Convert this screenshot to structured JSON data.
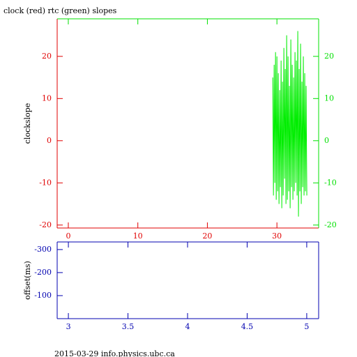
{
  "chart_data": [
    {
      "type": "line",
      "title": "clock (red) rtc (green) slopes",
      "ylabel": "clockslope",
      "xlim": [
        -1.6,
        36
      ],
      "xticks": [
        0,
        10,
        20,
        30
      ],
      "ylim": [
        -20.7,
        28.9
      ],
      "yticks": [
        -20,
        -10,
        0,
        10,
        20
      ],
      "y2lim": [
        -20.7,
        28.9
      ],
      "y2ticks": [
        -20,
        -10,
        0,
        10,
        20
      ],
      "axis_color": "#e00000",
      "y2_color": "#00e000",
      "series": [
        {
          "name": "rtc",
          "color": "#00ee00",
          "axis": "y2",
          "x": [
            29.4,
            29.5,
            29.6,
            29.7,
            29.8,
            29.9,
            30.0,
            30.1,
            30.2,
            30.3,
            30.4,
            30.5,
            30.6,
            30.7,
            30.8,
            30.9,
            31.0,
            31.1,
            31.2,
            31.3,
            31.4,
            31.5,
            31.6,
            31.7,
            31.8,
            31.9,
            32.0,
            32.1,
            32.2,
            32.3,
            32.4,
            32.5,
            32.6,
            32.7,
            32.8,
            32.9,
            33.0,
            33.1,
            33.2,
            33.3,
            33.4,
            33.5,
            33.6,
            33.7,
            33.8,
            33.9,
            34.0,
            34.1,
            34.2,
            34.3
          ],
          "values": [
            15,
            -13,
            18,
            -10,
            21,
            -14,
            20,
            -12,
            16,
            -15,
            12,
            -11,
            19,
            -16,
            14,
            -13,
            22,
            -9,
            17,
            -15,
            25,
            -14,
            20,
            -12,
            13,
            -16,
            24,
            -11,
            18,
            -14,
            15,
            -12,
            21,
            -10,
            19,
            -13,
            26,
            -18,
            17,
            -12,
            23,
            -15,
            14,
            -11,
            20,
            -13,
            16,
            -12,
            13,
            -13
          ]
        }
      ]
    },
    {
      "type": "line",
      "ylabel": "offset(ms)",
      "xlim": [
        2.906,
        5.1
      ],
      "xticks": [
        3,
        3.5,
        4,
        4.5,
        5
      ],
      "ylim": [
        0,
        -333
      ],
      "yticks": [
        -300,
        -200,
        -100
      ],
      "axis_color": "#0000b0",
      "series": []
    }
  ],
  "footer": "2015-03-29 info.physics.ubc.ca"
}
